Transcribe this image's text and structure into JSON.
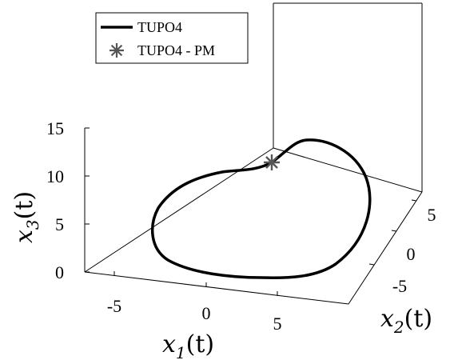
{
  "chart_data": {
    "type": "line3d",
    "title": "",
    "axes": {
      "x": {
        "label": "x1(t)",
        "label_main": "x",
        "label_sub": "1",
        "label_tail": "(t)",
        "ticks": [
          "-5",
          "0",
          "5"
        ]
      },
      "y": {
        "label": "x2(t)",
        "label_main": "x",
        "label_sub": "2",
        "label_tail": "(t)",
        "ticks": [
          "-5",
          "0",
          "5"
        ]
      },
      "z": {
        "label": "x3(t)",
        "label_main": "x",
        "label_sub": "3",
        "label_tail": "(t)",
        "ticks": [
          "0",
          "5",
          "10",
          "15"
        ],
        "range": [
          0,
          15
        ]
      }
    },
    "series": [
      {
        "name": "TUPO4",
        "style": "solid-line",
        "color": "#000000"
      },
      {
        "name": "TUPO4 - PM",
        "style": "asterisk-marker",
        "color": "#555555"
      }
    ],
    "legend_position": "top-left",
    "grid": false
  }
}
